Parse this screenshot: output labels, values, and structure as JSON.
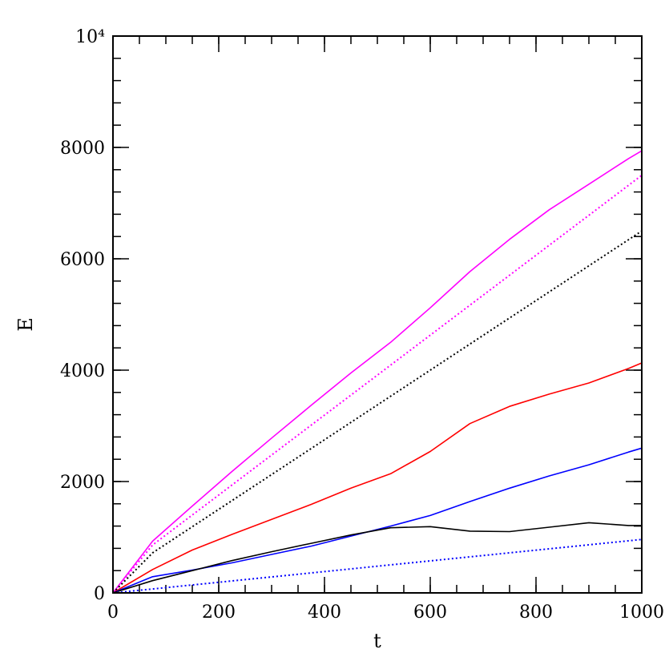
{
  "chart_data": {
    "type": "line",
    "xlabel": "t",
    "ylabel": "E",
    "xlim": [
      0,
      1000
    ],
    "ylim": [
      0,
      10000
    ],
    "x_ticks": [
      0,
      200,
      400,
      600,
      800,
      1000
    ],
    "x_tick_labels": [
      "0",
      "200",
      "400",
      "600",
      "800",
      "1000"
    ],
    "y_ticks": [
      0,
      2000,
      4000,
      6000,
      8000,
      10000
    ],
    "y_tick_labels": [
      "0",
      "2000",
      "4000",
      "6000",
      "8000",
      "10⁴"
    ],
    "x_minor_step": 50,
    "y_minor_step": 400,
    "grid": false,
    "series": [
      {
        "color": "#ff00ff",
        "style": "solid",
        "x": [
          0,
          75,
          150,
          225,
          300,
          375,
          450,
          525,
          600,
          675,
          750,
          825,
          900,
          975,
          1000
        ],
        "y": [
          0,
          930,
          1560,
          2180,
          2780,
          3370,
          3950,
          4500,
          5120,
          5770,
          6350,
          6880,
          7340,
          7800,
          7940
        ]
      },
      {
        "color": "#ff00ff",
        "style": "dotted",
        "x": [
          0,
          75,
          1000
        ],
        "y": [
          0,
          860,
          7500
        ]
      },
      {
        "color": "#000000",
        "style": "dotted",
        "x": [
          0,
          75,
          1000
        ],
        "y": [
          0,
          720,
          6500
        ]
      },
      {
        "color": "#ff0000",
        "style": "solid",
        "x": [
          0,
          75,
          150,
          225,
          300,
          375,
          450,
          525,
          600,
          675,
          750,
          825,
          900,
          975,
          1000
        ],
        "y": [
          0,
          420,
          770,
          1050,
          1320,
          1590,
          1880,
          2140,
          2540,
          3040,
          3350,
          3570,
          3770,
          4030,
          4130
        ]
      },
      {
        "color": "#0000ff",
        "style": "solid",
        "x": [
          0,
          75,
          150,
          225,
          300,
          375,
          450,
          525,
          600,
          675,
          750,
          825,
          900,
          975,
          1000
        ],
        "y": [
          0,
          290,
          410,
          540,
          690,
          840,
          1020,
          1200,
          1390,
          1640,
          1880,
          2100,
          2300,
          2530,
          2600
        ]
      },
      {
        "color": "#000000",
        "style": "solid",
        "x": [
          0,
          75,
          150,
          225,
          300,
          375,
          450,
          525,
          600,
          675,
          750,
          825,
          900,
          975,
          1000
        ],
        "y": [
          0,
          220,
          400,
          580,
          740,
          890,
          1040,
          1170,
          1190,
          1110,
          1100,
          1180,
          1260,
          1210,
          1210
        ]
      },
      {
        "color": "#0000ff",
        "style": "dotted",
        "x": [
          0,
          75,
          1000
        ],
        "y": [
          0,
          70,
          960
        ]
      }
    ]
  }
}
